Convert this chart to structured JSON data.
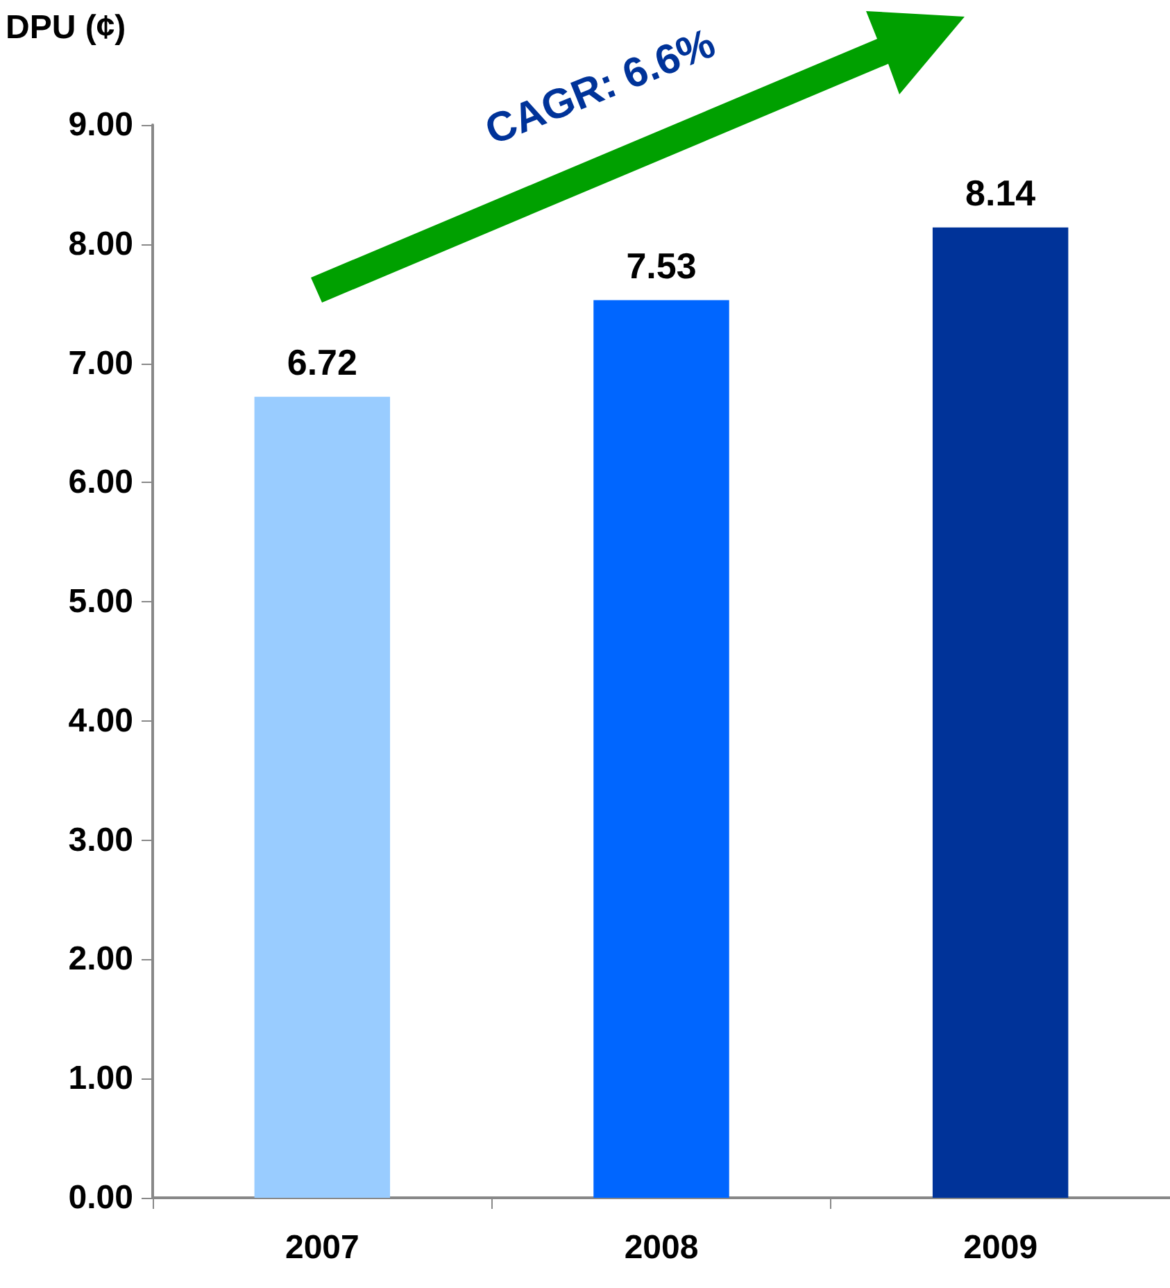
{
  "chart_data": {
    "type": "bar",
    "ylabel": "DPU (¢)",
    "categories": [
      "2007",
      "2008",
      "2009"
    ],
    "values": [
      6.72,
      7.53,
      8.14
    ],
    "colors": [
      "#99ccff",
      "#0066ff",
      "#003399"
    ],
    "ylim": [
      0,
      9
    ],
    "yticks": [
      {
        "value": 0,
        "label": "0.00"
      },
      {
        "value": 1,
        "label": "1.00"
      },
      {
        "value": 2,
        "label": "2.00"
      },
      {
        "value": 3,
        "label": "3.00"
      },
      {
        "value": 4,
        "label": "4.00"
      },
      {
        "value": 5,
        "label": "5.00"
      },
      {
        "value": 6,
        "label": "6.00"
      },
      {
        "value": 7,
        "label": "7.00"
      },
      {
        "value": 8,
        "label": "8.00"
      },
      {
        "value": 9,
        "label": "9.00"
      }
    ],
    "data_labels": true,
    "annotations": [
      "CAGR: 6.6%"
    ]
  }
}
